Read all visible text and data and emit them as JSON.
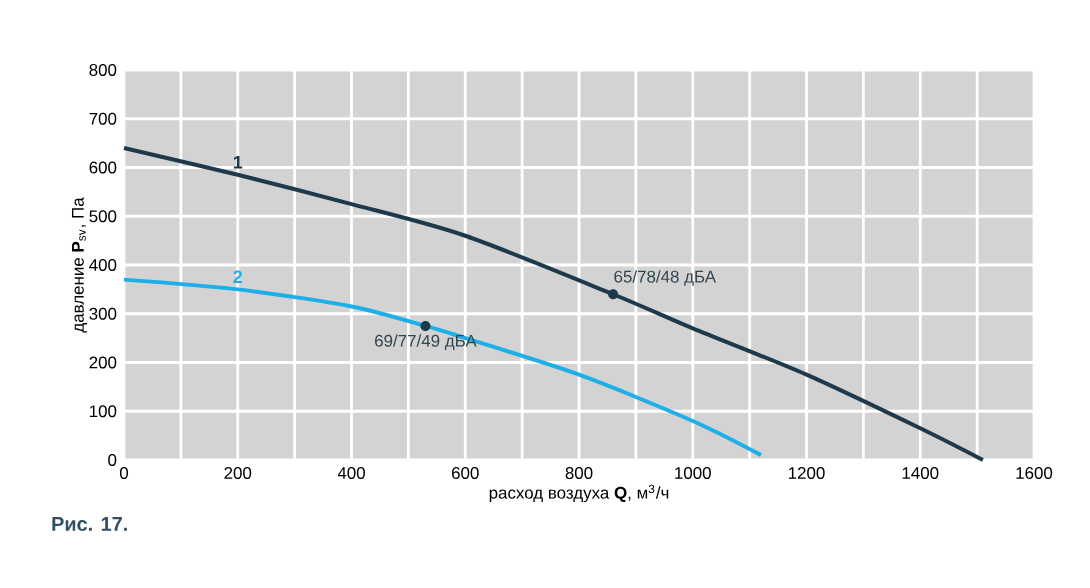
{
  "chart_data": {
    "type": "line",
    "xlabel": "расход воздуха **Q**, м$^{3}$/ч",
    "ylabel": "давление **P**$_{sv}$, Па",
    "xlim": [
      0,
      1600
    ],
    "ylim": [
      0,
      800
    ],
    "xticks": [
      0,
      200,
      400,
      600,
      800,
      1000,
      1200,
      1400,
      1600
    ],
    "yticks": [
      0,
      100,
      200,
      300,
      400,
      500,
      600,
      700,
      800
    ],
    "grid": true,
    "series": [
      {
        "name": "1",
        "color": "#1e3a4a",
        "x": [
          0,
          200,
          400,
          600,
          860,
          1000,
          1200,
          1400,
          1510
        ],
        "values": [
          640,
          585,
          525,
          460,
          340,
          270,
          175,
          65,
          0
        ]
      },
      {
        "name": "2",
        "color": "#1eaee8",
        "x": [
          0,
          200,
          400,
          530,
          600,
          800,
          1000,
          1120
        ],
        "values": [
          370,
          350,
          315,
          275,
          250,
          175,
          80,
          10
        ]
      }
    ],
    "annotations": [
      "Рис. 17.",
      {
        "text": "65/78/48 дБА",
        "x": 860,
        "y": 340
      },
      {
        "text": "69/77/49 дБА",
        "x": 530,
        "y": 275
      }
    ]
  }
}
